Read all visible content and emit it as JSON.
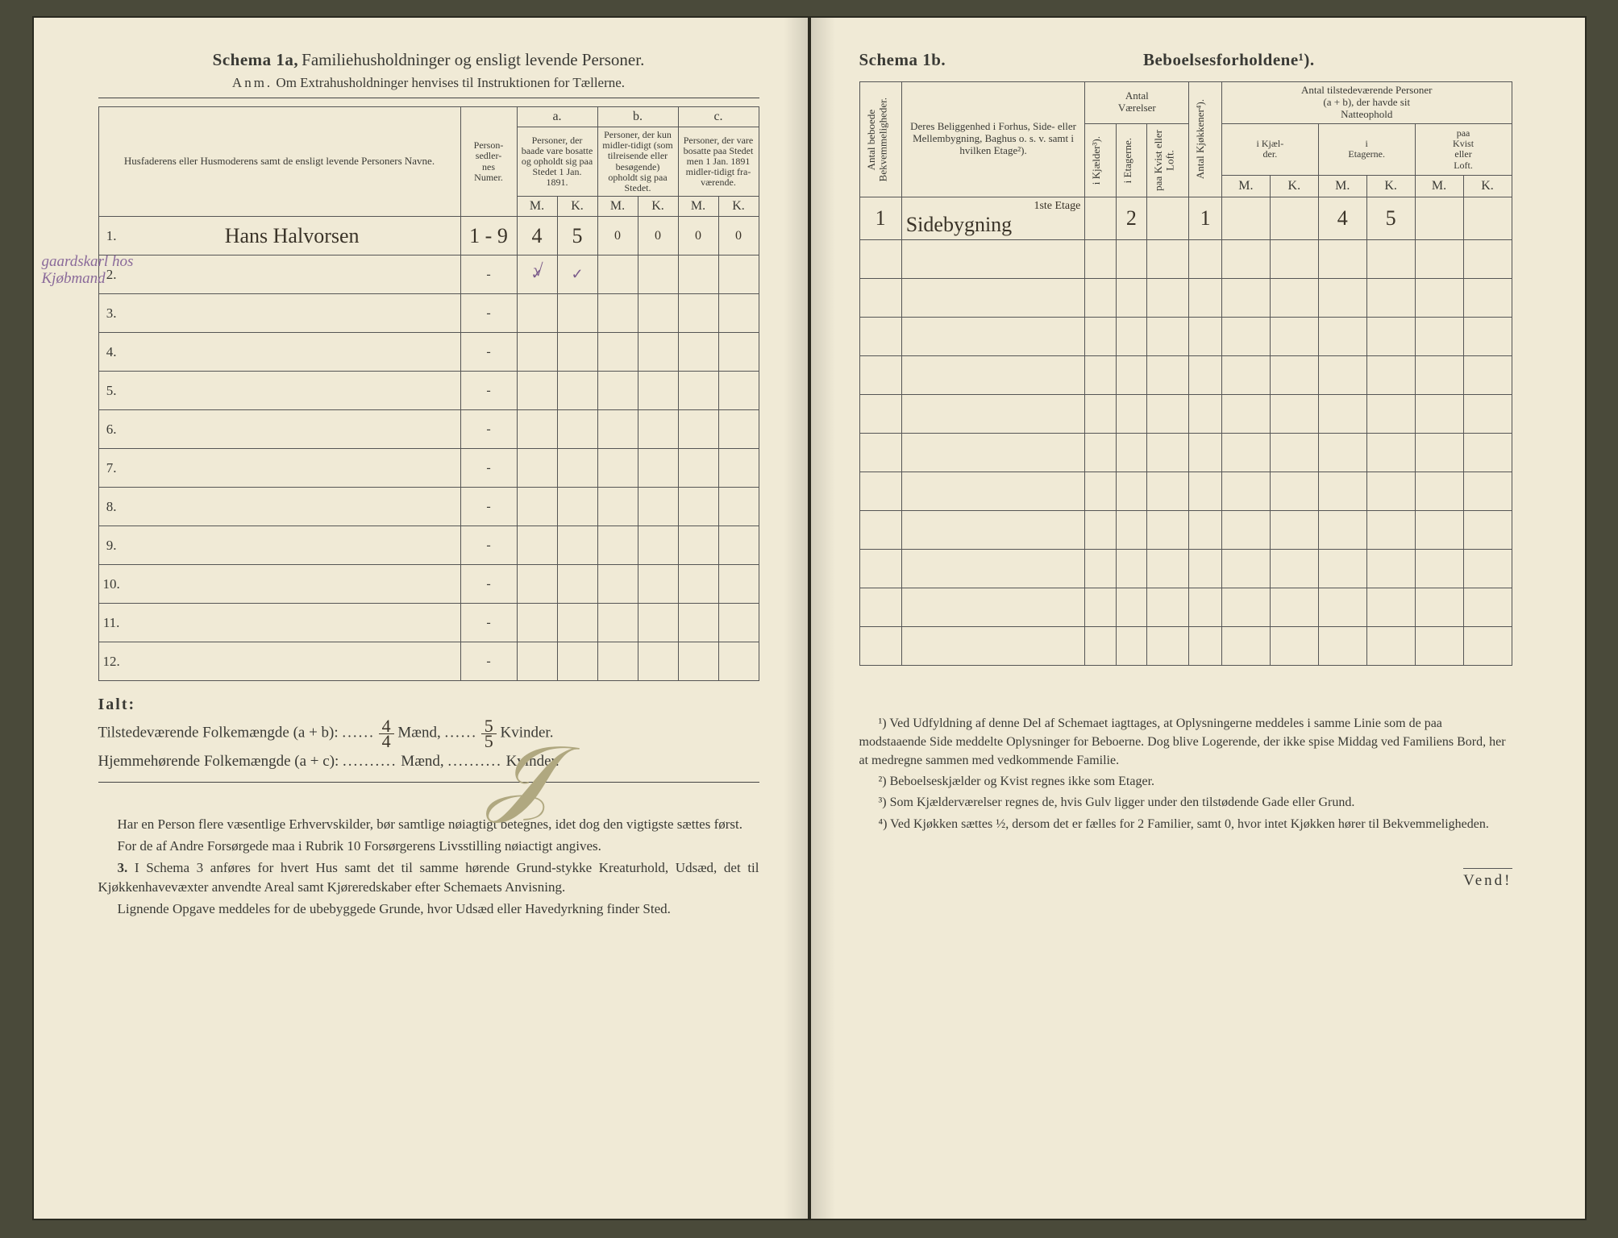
{
  "left": {
    "schema_no": "Schema 1a,",
    "schema_title": "Familiehusholdninger og ensligt levende Personer.",
    "anm_label": "Anm.",
    "anm_text": "Om Extrahusholdninger henvises til Instruktionen for Tællerne.",
    "hdr_name": "Husfaderens eller Husmoderens samt de ensligt levende Personers Navne.",
    "hdr_num": "Person-\nsedler-\nnes\nNumer.",
    "hdr_a": "a.",
    "hdr_a_txt": "Personer, der baade vare bosatte og opholdt sig paa Stedet 1 Jan. 1891.",
    "hdr_b": "b.",
    "hdr_b_txt": "Personer, der kun midler-tidigt (som tilreisende eller besøgende) opholdt sig paa Stedet.",
    "hdr_c": "c.",
    "hdr_c_txt": "Personer, der vare bosatte paa Stedet men 1 Jan. 1891 midler-tidigt fra-værende.",
    "M": "M.",
    "K": "K.",
    "margin_note1": "gaardskarl hos",
    "margin_note2": "Kjøbmand",
    "row1_name": "Hans Halvorsen",
    "row1_num": "1 - 9",
    "row1_aM": "4",
    "row1_aK": "5",
    "row1_bM": "0",
    "row1_bK": "0",
    "row1_cM": "0",
    "row1_cK": "0",
    "rows": [
      "2.",
      "3.",
      "4.",
      "5.",
      "6.",
      "7.",
      "8.",
      "9.",
      "10.",
      "11.",
      "12."
    ],
    "ialt": "Ialt:",
    "tot1_label": "Tilstedeværende Folkemængde (a + b):",
    "tot2_label": "Hjemmehørende Folkemængde (a + c):",
    "maend": "Mænd,",
    "kvinder": "Kvinder.",
    "tot1_m_n": "4",
    "tot1_m_d": "4",
    "tot1_k_n": "5",
    "tot1_k_d": "5",
    "notes_p1": "Har en Person flere væsentlige Erhvervskilder, bør samtlige nøiagtigt betegnes, idet dog den vigtigste sættes først.",
    "notes_p2": "For de af Andre Forsørgede maa i Rubrik 10 Forsørgerens Livsstilling nøiactigt angives.",
    "notes_p3_num": "3.",
    "notes_p3": "I Schema 3 anføres for hvert Hus samt det til samme hørende Grund-stykke Kreaturhold, Udsæd, det til Kjøkkenhavevæxter anvendte Areal samt Kjøreredskaber efter Schemaets Anvisning.",
    "notes_p4": "Lignende Opgave meddeles for de ubebyggede Grunde, hvor Udsæd eller Havedyrkning finder Sted."
  },
  "right": {
    "schema_no": "Schema 1b.",
    "schema_title": "Beboelsesforholdene¹).",
    "hdr_antal_bekv": "Antal beboede\nBekvemmeligheder.",
    "hdr_belig": "Deres Beliggenhed i Forhus, Side- eller Mellembygning, Baghus o. s. v. samt i hvilken Etage²).",
    "hdr_vaer": "Antal\nVærelser",
    "hdr_kjael": "i Kjælder³).",
    "hdr_etag": "i Etagerne.",
    "hdr_kvist": "paa Kvist eller\nLoft.",
    "hdr_kjok": "Antal Kjøkkener⁴).",
    "hdr_pers": "Antal tilstedeværende Personer\n(a + b), der havde sit\nNatteophold",
    "hdr_ik": "i Kjæl-\nder.",
    "hdr_ie": "i\nEtagerne.",
    "hdr_pk": "paa\nKvist\neller\nLoft.",
    "M": "M.",
    "K": "K.",
    "row1_num": "1",
    "row1_belig_sup": "1ste Etage",
    "row1_belig": "Sidebygning",
    "row1_etag": "2",
    "row1_kjok": "1",
    "row1_em": "4",
    "row1_ek": "5",
    "fn1": "¹) Ved Udfyldning af denne Del af Schemaet iagttages, at Oplysningerne meddeles i samme Linie som de paa modstaaende Side meddelte Oplysninger for Beboerne. Dog blive Logerende, der ikke spise Middag ved Familiens Bord, her at medregne sammen med vedkommende Familie.",
    "fn2": "²) Beboelseskjælder og Kvist regnes ikke som Etager.",
    "fn3": "³) Som Kjælderværelser regnes de, hvis Gulv ligger under den tilstødende Gade eller Grund.",
    "fn4": "⁴) Ved Kjøkken sættes ½, dersom det er fælles for 2 Familier, samt 0, hvor intet Kjøkken hører til Bekvemmeligheden.",
    "vend": "Vend!"
  }
}
